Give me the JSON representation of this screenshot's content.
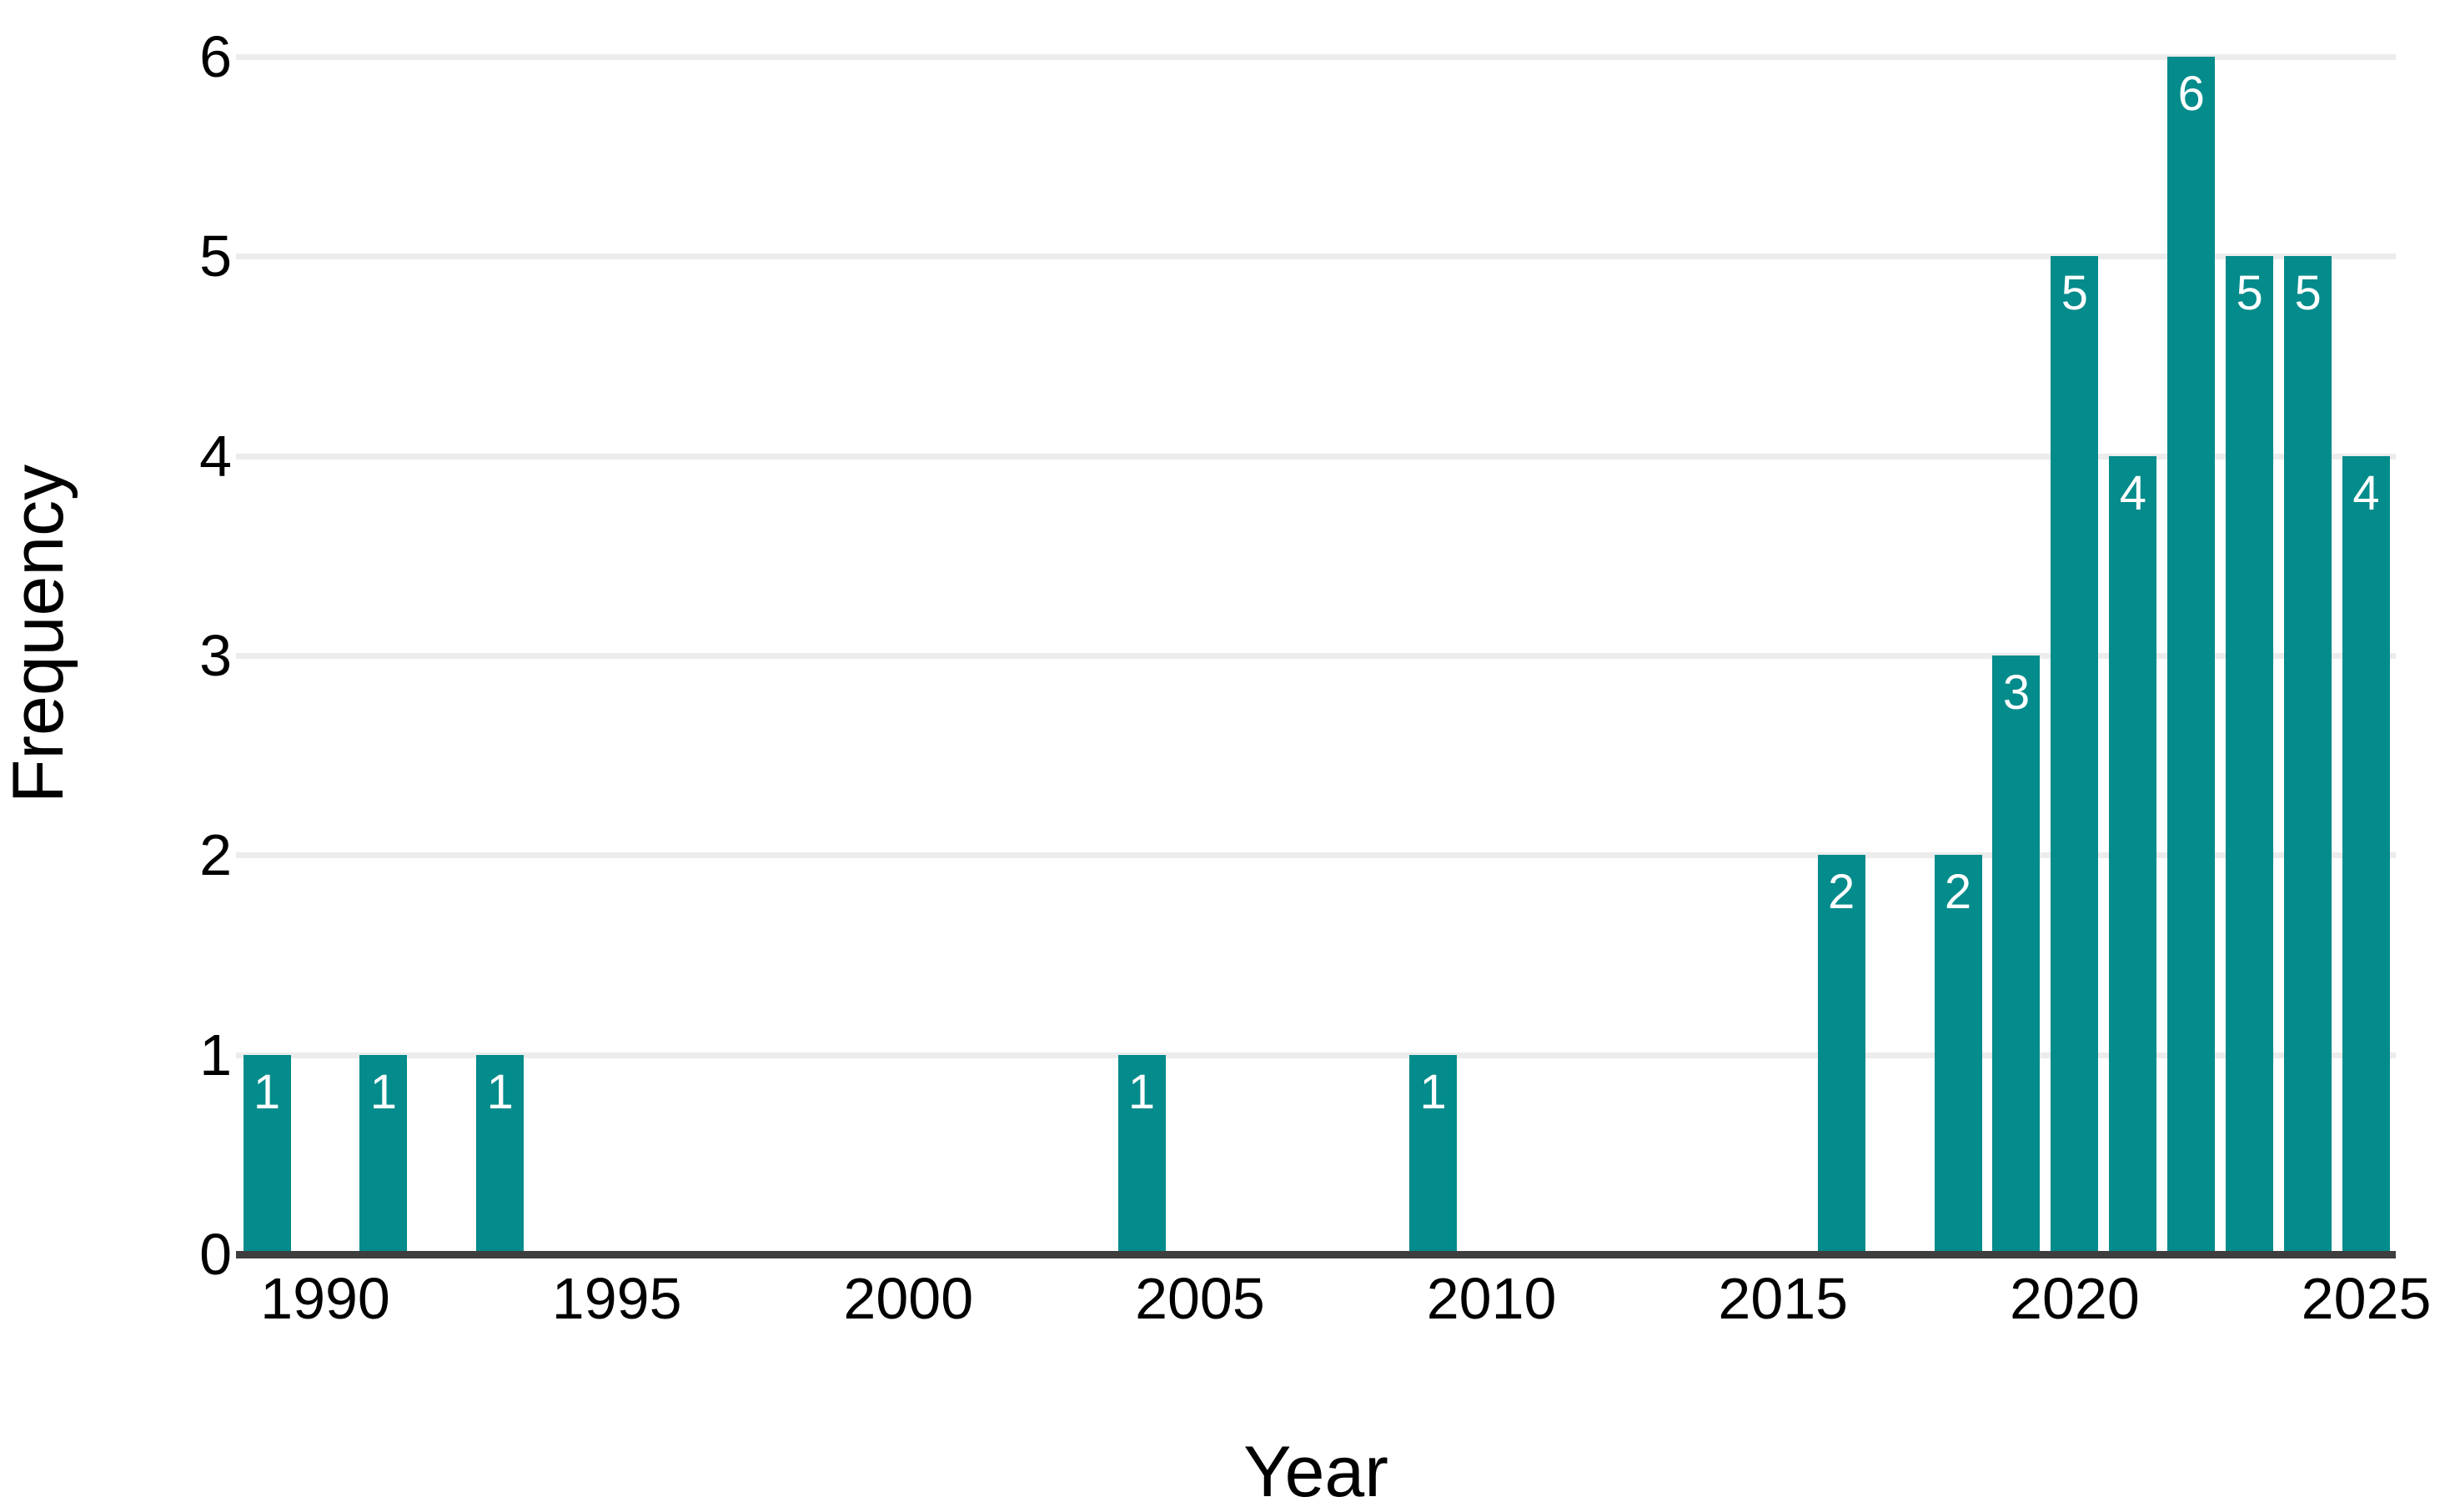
{
  "chart": {
    "y_axis_title": "Frequency",
    "x_axis_title": "Year"
  },
  "chart_data": {
    "type": "bar",
    "title": "",
    "xlabel": "Year",
    "ylabel": "Frequency",
    "x": [
      1989,
      1991,
      1993,
      2004,
      2009,
      2016,
      2018,
      2019,
      2020,
      2021,
      2022,
      2023,
      2024,
      2025
    ],
    "values": [
      1,
      1,
      1,
      1,
      1,
      2,
      2,
      3,
      5,
      4,
      6,
      5,
      5,
      4
    ],
    "bar_value_labels": [
      1,
      1,
      1,
      1,
      1,
      2,
      2,
      3,
      5,
      4,
      6,
      5,
      5,
      4
    ],
    "xticks": [
      1990,
      1995,
      2000,
      2005,
      2010,
      2015,
      2020,
      2025
    ],
    "yticks": [
      0,
      1,
      2,
      3,
      4,
      5,
      6
    ],
    "xlim": [
      1988.4,
      2025.9
    ],
    "ylim": [
      0,
      6
    ],
    "grid": "horizontal",
    "legend": "none",
    "colors": {
      "bar": "#048b8b",
      "bar_label_text": "#ffffff",
      "gridline": "#ececec",
      "axis_line": "#3e3e3e",
      "tick_text": "#000000",
      "background": "#ffffff"
    }
  }
}
